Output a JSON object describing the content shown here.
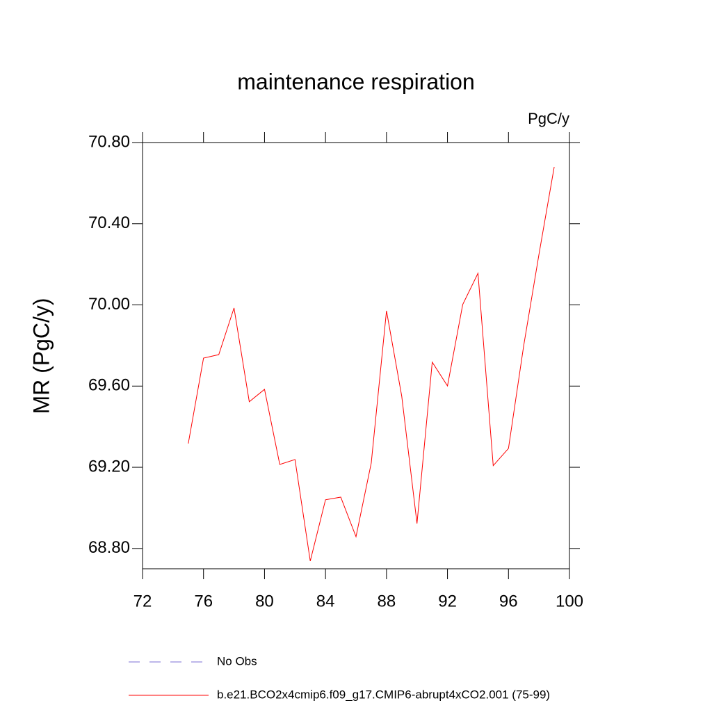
{
  "chart_data": {
    "type": "line",
    "title": "maintenance respiration",
    "units_label": "PgC/y",
    "y_label": "MR  (PgC/y)",
    "x": [
      75,
      76,
      77,
      78,
      79,
      80,
      81,
      82,
      83,
      84,
      85,
      86,
      87,
      88,
      89,
      90,
      91,
      92,
      93,
      94,
      95,
      96,
      97,
      98,
      99
    ],
    "series": [
      {
        "name": "b.e21.BCO2x4cmip6.f09_g17.CMIP6-abrupt4xCO2.001 (75-99)",
        "color": "#ff0000",
        "values": [
          69.317,
          69.738,
          69.755,
          69.985,
          69.523,
          69.584,
          69.214,
          69.238,
          68.738,
          69.04,
          69.053,
          68.858,
          69.221,
          69.971,
          69.55,
          68.923,
          69.718,
          69.601,
          70.002,
          70.156,
          69.208,
          69.293,
          69.8,
          70.249,
          70.68
        ]
      }
    ],
    "reference": {
      "name": "No Obs",
      "color": "#7b6fd6",
      "style": "dashed"
    },
    "xlim": [
      72,
      100
    ],
    "xticks": [
      72,
      76,
      80,
      84,
      88,
      92,
      96,
      100
    ],
    "ylim": [
      68.7,
      70.8
    ],
    "yticks": [
      {
        "value": 68.8,
        "label": "68.80"
      },
      {
        "value": 69.2,
        "label": "69.20"
      },
      {
        "value": 69.6,
        "label": "69.60"
      },
      {
        "value": 70.0,
        "label": "70.00"
      },
      {
        "value": 70.4,
        "label": "70.40"
      },
      {
        "value": 70.8,
        "label": "70.80"
      }
    ]
  }
}
